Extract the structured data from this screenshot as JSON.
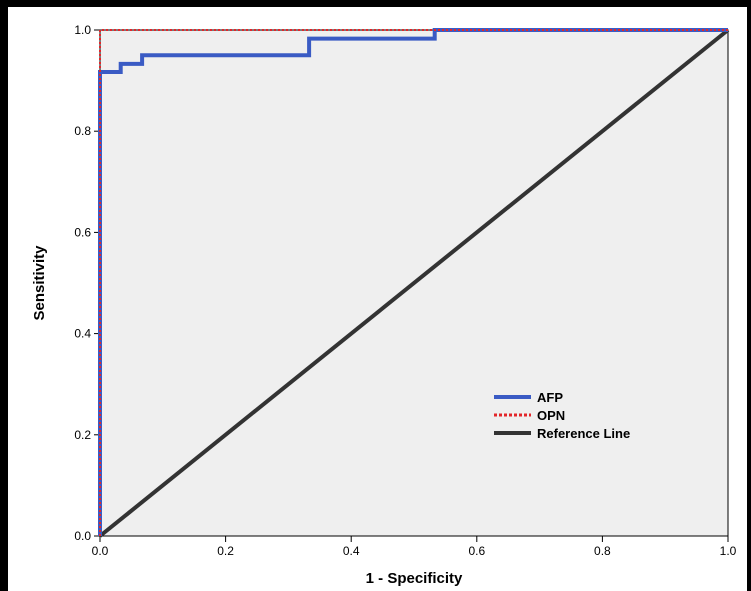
{
  "chart_data": {
    "type": "line",
    "title": "",
    "xlabel": "1 - Specificity",
    "ylabel": "Sensitivity",
    "xlim": [
      0.0,
      1.0
    ],
    "ylim": [
      0.0,
      1.0
    ],
    "xticks": [
      "0.0",
      "0.2",
      "0.4",
      "0.6",
      "0.8",
      "1.0"
    ],
    "yticks": [
      "0.0",
      "0.2",
      "0.4",
      "0.6",
      "0.8",
      "1.0"
    ],
    "grid": false,
    "legend_position": "bottom-right",
    "series": [
      {
        "name": "AFP",
        "color": "#3a5bc4",
        "style": "solid",
        "points": [
          [
            0.0,
            0.0
          ],
          [
            0.0,
            0.917
          ],
          [
            0.033,
            0.917
          ],
          [
            0.033,
            0.933
          ],
          [
            0.067,
            0.933
          ],
          [
            0.067,
            0.95
          ],
          [
            0.333,
            0.95
          ],
          [
            0.333,
            0.983
          ],
          [
            0.533,
            0.983
          ],
          [
            0.533,
            1.0
          ],
          [
            1.0,
            1.0
          ]
        ]
      },
      {
        "name": "OPN",
        "color": "#e3262a",
        "style": "dotted",
        "points": [
          [
            0.0,
            0.0
          ],
          [
            0.0,
            1.0
          ],
          [
            1.0,
            1.0
          ]
        ]
      },
      {
        "name": "Reference Line",
        "color": "#333333",
        "style": "solid",
        "points": [
          [
            0.0,
            0.0
          ],
          [
            1.0,
            1.0
          ]
        ]
      }
    ]
  }
}
